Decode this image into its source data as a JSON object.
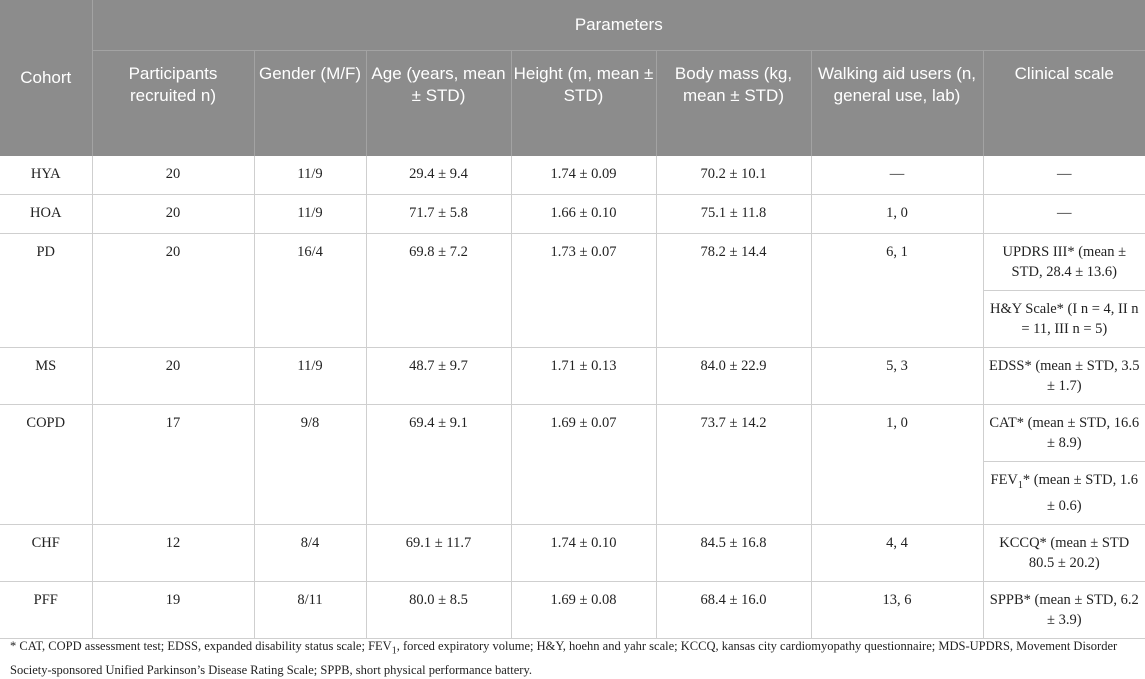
{
  "header": {
    "cohort": "Cohort",
    "parameters": "Parameters",
    "columns": [
      "Participants recruited n)",
      "Gender (M/F)",
      "Age (years, mean ± STD)",
      "Height (m, mean ± STD)",
      "Body mass (kg, mean ± STD)",
      "Walking aid users (n, general use, lab)",
      "Clinical scale"
    ]
  },
  "rows": [
    {
      "cohort": "HYA",
      "n": "20",
      "gender": "11/9",
      "age": "29.4 ± 9.4",
      "height": "1.74 ± 0.09",
      "mass": "70.2 ± 10.1",
      "aid": "—",
      "clinical": [
        "—"
      ]
    },
    {
      "cohort": "HOA",
      "n": "20",
      "gender": "11/9",
      "age": "71.7 ± 5.8",
      "height": "1.66 ± 0.10",
      "mass": "75.1 ± 11.8",
      "aid": "1, 0",
      "clinical": [
        "—"
      ]
    },
    {
      "cohort": "PD",
      "n": "20",
      "gender": "16/4",
      "age": "69.8 ± 7.2",
      "height": "1.73 ± 0.07",
      "mass": "78.2 ± 14.4",
      "aid": "6, 1",
      "clinical": [
        "UPDRS III* (mean ± STD, 28.4 ± 13.6)",
        "H&Y Scale* (I n = 4, II n = 11, III n = 5)"
      ]
    },
    {
      "cohort": "MS",
      "n": "20",
      "gender": "11/9",
      "age": "48.7 ± 9.7",
      "height": "1.71 ± 0.13",
      "mass": "84.0 ± 22.9",
      "aid": "5, 3",
      "clinical": [
        "EDSS* (mean ± STD, 3.5 ± 1.7)"
      ]
    },
    {
      "cohort": "COPD",
      "n": "17",
      "gender": "9/8",
      "age": "69.4 ± 9.1",
      "height": "1.69 ± 0.07",
      "mass": "73.7 ± 14.2",
      "aid": "1, 0",
      "clinical": [
        "CAT* (mean ± STD, 16.6 ± 8.9)",
        "FEV1* (mean ± STD, 1.6 ± 0.6)"
      ]
    },
    {
      "cohort": "CHF",
      "n": "12",
      "gender": "8/4",
      "age": "69.1 ± 11.7",
      "height": "1.74 ± 0.10",
      "mass": "84.5 ± 16.8",
      "aid": "4, 4",
      "clinical": [
        "KCCQ* (mean ± STD 80.5 ± 20.2)"
      ]
    },
    {
      "cohort": "PFF",
      "n": "19",
      "gender": "8/11",
      "age": "80.0 ± 8.5",
      "height": "1.69 ± 0.08",
      "mass": "68.4 ± 16.0",
      "aid": "13, 6",
      "clinical": [
        "SPPB* (mean ± STD, 6.2 ± 3.9)"
      ]
    }
  ],
  "footnote": "* CAT, COPD assessment test; EDSS, expanded disability status scale; FEV1, forced expiratory volume; H&Y, hoehn and yahr scale; KCCQ, kansas city cardiomyopathy questionnaire; MDS-UPDRS, Movement Disorder Society-sponsored Unified Parkinson’s Disease Rating Scale; SPPB, short physical performance battery."
}
